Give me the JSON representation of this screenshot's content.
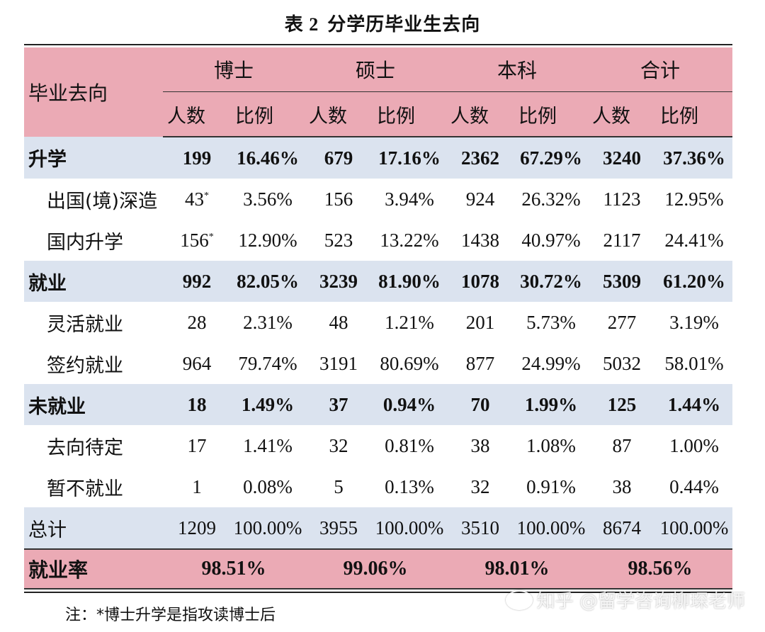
{
  "title": {
    "number": "表 2",
    "text": "分学历毕业生去向"
  },
  "header": {
    "row_label": "毕业去向",
    "groups": [
      "博士",
      "硕士",
      "本科",
      "合计"
    ],
    "sub": [
      "人数",
      "比例"
    ]
  },
  "rows": [
    {
      "label": "升学",
      "values": [
        "199",
        "16.46%",
        "679",
        "17.16%",
        "2362",
        "67.29%",
        "3240",
        "37.36%"
      ]
    },
    {
      "label": "出国(境)深造",
      "values": [
        "43",
        "3.56%",
        "156",
        "3.94%",
        "924",
        "26.32%",
        "1123",
        "12.95%"
      ]
    },
    {
      "label": "国内升学",
      "values": [
        "156",
        "12.90%",
        "523",
        "13.22%",
        "1438",
        "40.97%",
        "2117",
        "24.41%"
      ]
    },
    {
      "label": "就业",
      "values": [
        "992",
        "82.05%",
        "3239",
        "81.90%",
        "1078",
        "30.72%",
        "5309",
        "61.20%"
      ]
    },
    {
      "label": "灵活就业",
      "values": [
        "28",
        "2.31%",
        "48",
        "1.21%",
        "201",
        "5.73%",
        "277",
        "3.19%"
      ]
    },
    {
      "label": "签约就业",
      "values": [
        "964",
        "79.74%",
        "3191",
        "80.69%",
        "877",
        "24.99%",
        "5032",
        "58.01%"
      ]
    },
    {
      "label": "未就业",
      "values": [
        "18",
        "1.49%",
        "37",
        "0.94%",
        "70",
        "1.99%",
        "125",
        "1.44%"
      ]
    },
    {
      "label": "去向待定",
      "values": [
        "17",
        "1.41%",
        "32",
        "0.81%",
        "38",
        "1.08%",
        "87",
        "1.00%"
      ]
    },
    {
      "label": "暂不就业",
      "values": [
        "1",
        "0.08%",
        "5",
        "0.13%",
        "32",
        "0.91%",
        "38",
        "0.44%"
      ]
    },
    {
      "label": "总计",
      "values": [
        "1209",
        "100.00%",
        "3955",
        "100.00%",
        "3510",
        "100.00%",
        "8674",
        "100.00%"
      ]
    }
  ],
  "asterisk": "*",
  "employment_rate": {
    "label": "就业率",
    "values": [
      "98.51%",
      "99.06%",
      "98.01%",
      "98.56%"
    ]
  },
  "note": "注：*博士升学是指攻读博士后",
  "watermark": "知乎 @留学咨询柳琛老师",
  "colors": {
    "header_bg": "#ebaab5",
    "band_bg": "#dbe3ef"
  }
}
